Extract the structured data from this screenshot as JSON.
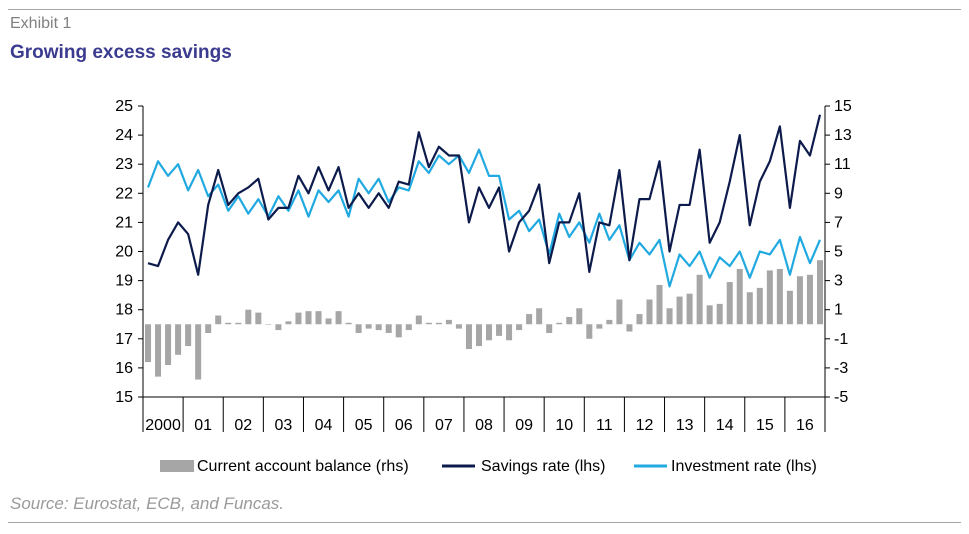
{
  "header": {
    "exhibit": "Exhibit 1",
    "title": "Growing excess savings"
  },
  "footer": {
    "source": "Source: Eurostat, ECB, and Funcas."
  },
  "colors": {
    "bars": "#a6a6a6",
    "savings": "#0d1b4c",
    "investment": "#21a9e1",
    "axis": "#000000"
  },
  "chart_data": {
    "type": "bar+line",
    "x_labels": [
      "2000",
      "01",
      "02",
      "03",
      "04",
      "05",
      "06",
      "07",
      "08",
      "09",
      "10",
      "11",
      "12",
      "13",
      "14",
      "15",
      "16"
    ],
    "points_per_label": 4,
    "left_axis": {
      "min": 15,
      "max": 25,
      "ticks": [
        15,
        16,
        17,
        18,
        19,
        20,
        21,
        22,
        23,
        24,
        25
      ]
    },
    "right_axis": {
      "min": -5,
      "max": 15,
      "ticks": [
        -5,
        -3,
        -1,
        1,
        3,
        5,
        7,
        9,
        11,
        13,
        15
      ]
    },
    "legend": {
      "position": "bottom"
    },
    "series": [
      {
        "name": "Current account balance (rhs)",
        "type": "bar",
        "axis": "right",
        "values": [
          -2.6,
          -3.6,
          -2.8,
          -2.1,
          -1.5,
          -3.8,
          -0.6,
          0.6,
          0.1,
          0.1,
          1.0,
          0.8,
          0,
          -0.4,
          0.2,
          0.8,
          0.9,
          0.9,
          0.4,
          0.9,
          0.1,
          -0.6,
          -0.3,
          -0.4,
          -0.6,
          -0.9,
          -0.4,
          0.6,
          0.1,
          0.1,
          0.3,
          -0.3,
          -1.7,
          -1.5,
          -1.1,
          -0.8,
          -1.1,
          -0.4,
          0.7,
          1.1,
          -0.6,
          0.1,
          0.5,
          1.1,
          -1.0,
          -0.3,
          0.3,
          1.7,
          -0.5,
          0.7,
          1.7,
          2.7,
          1.1,
          1.9,
          2.1,
          3.4,
          1.3,
          1.4,
          2.9,
          3.8,
          2.2,
          2.5,
          3.7,
          3.8,
          2.3,
          3.3,
          3.4,
          4.4
        ]
      },
      {
        "name": "Savings rate (lhs)",
        "type": "line",
        "axis": "left",
        "values": [
          19.6,
          19.5,
          20.4,
          21.0,
          20.6,
          19.2,
          21.6,
          22.8,
          21.6,
          22.0,
          22.2,
          22.5,
          21.1,
          21.5,
          21.5,
          22.6,
          22.0,
          22.9,
          22.1,
          22.9,
          21.5,
          22.0,
          21.5,
          22.0,
          21.5,
          22.4,
          22.3,
          24.1,
          22.9,
          23.6,
          23.3,
          23.3,
          21.0,
          22.2,
          21.5,
          22.2,
          20.0,
          21.0,
          21.4,
          22.3,
          19.6,
          21.0,
          21.0,
          22.0,
          19.3,
          21.0,
          20.9,
          22.8,
          19.7,
          21.8,
          21.8,
          23.1,
          20.0,
          21.6,
          21.6,
          23.5,
          20.3,
          21.0,
          22.4,
          24.0,
          20.9,
          22.4,
          23.1,
          24.3,
          21.5,
          23.8,
          23.3,
          24.7
        ]
      },
      {
        "name": "Investment rate (lhs)",
        "type": "line",
        "axis": "left",
        "values": [
          22.2,
          23.1,
          22.6,
          23.0,
          22.1,
          22.8,
          21.9,
          22.3,
          21.4,
          21.9,
          21.3,
          21.8,
          21.2,
          21.9,
          21.4,
          22.1,
          21.2,
          22.1,
          21.7,
          22.1,
          21.2,
          22.5,
          22.0,
          22.5,
          21.7,
          22.2,
          22.1,
          23.1,
          22.7,
          23.3,
          23.0,
          23.3,
          22.7,
          23.5,
          22.6,
          22.6,
          21.1,
          21.4,
          20.7,
          21.1,
          19.9,
          21.3,
          20.5,
          21.0,
          20.3,
          21.3,
          20.4,
          20.9,
          19.7,
          20.3,
          19.9,
          20.4,
          18.8,
          19.9,
          19.5,
          20.0,
          19.1,
          19.8,
          19.5,
          20.0,
          19.1,
          20.0,
          19.9,
          20.4,
          19.2,
          20.5,
          19.6,
          20.4
        ]
      }
    ]
  }
}
